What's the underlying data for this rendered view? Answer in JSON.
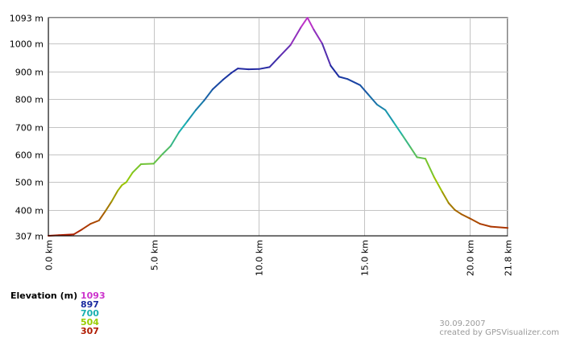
{
  "chart_data": {
    "type": "line",
    "xlabel": "",
    "ylabel": "",
    "xlim": [
      0,
      21.8
    ],
    "ylim": [
      307,
      1093
    ],
    "grid": true,
    "y_ticks": [
      {
        "value": 307,
        "label": "307 m"
      },
      {
        "value": 400,
        "label": "400 m"
      },
      {
        "value": 500,
        "label": "500 m"
      },
      {
        "value": 600,
        "label": "600 m"
      },
      {
        "value": 700,
        "label": "700 m"
      },
      {
        "value": 800,
        "label": "800 m"
      },
      {
        "value": 900,
        "label": "900 m"
      },
      {
        "value": 1000,
        "label": "1000 m"
      },
      {
        "value": 1093,
        "label": "1093 m"
      }
    ],
    "x_ticks": [
      {
        "value": 0,
        "label": "0.0 km"
      },
      {
        "value": 5,
        "label": "5.0 km"
      },
      {
        "value": 10,
        "label": "10.0 km"
      },
      {
        "value": 15,
        "label": "15.0 km"
      },
      {
        "value": 20,
        "label": "20.0 km"
      },
      {
        "value": 21.8,
        "label": "21.8 km"
      }
    ],
    "series": [
      {
        "x": [
          0,
          0.5,
          1.2,
          1.6,
          2.0,
          2.4,
          2.7,
          3.0,
          3.3,
          3.5,
          3.7,
          4.0,
          4.4,
          5.0,
          5.4,
          5.8,
          6.2,
          6.6,
          7.0,
          7.4,
          7.8,
          8.3,
          8.7,
          9.0,
          9.5,
          10.0,
          10.5,
          11.0,
          11.5,
          12.0,
          12.3,
          12.6,
          13.0,
          13.4,
          13.8,
          14.2,
          14.8,
          15.2,
          15.6,
          16.0,
          16.4,
          16.8,
          17.2,
          17.5,
          17.9,
          18.3,
          18.7,
          19.0,
          19.3,
          19.6,
          20.0,
          20.5,
          21.0,
          21.8
        ],
        "y": [
          307,
          309,
          312,
          330,
          350,
          362,
          395,
          430,
          470,
          490,
          500,
          535,
          565,
          567,
          600,
          630,
          680,
          720,
          760,
          795,
          835,
          870,
          895,
          910,
          907,
          908,
          915,
          955,
          995,
          1060,
          1093,
          1050,
          1000,
          920,
          880,
          872,
          850,
          815,
          780,
          760,
          715,
          670,
          625,
          590,
          585,
          520,
          465,
          425,
          400,
          385,
          370,
          350,
          340,
          335
        ]
      }
    ],
    "legend": {
      "title": "Elevation (m)",
      "entries": [
        {
          "label": "1093",
          "color": "#cc33cc"
        },
        {
          "label": "897",
          "color": "#1a2ba0"
        },
        {
          "label": "700",
          "color": "#19b0b0"
        },
        {
          "label": "504",
          "color": "#99cc00"
        },
        {
          "label": "307",
          "color": "#b01a00"
        }
      ]
    },
    "credit": {
      "date": "30.09.2007",
      "text": "created by GPSVisualizer.com"
    }
  }
}
